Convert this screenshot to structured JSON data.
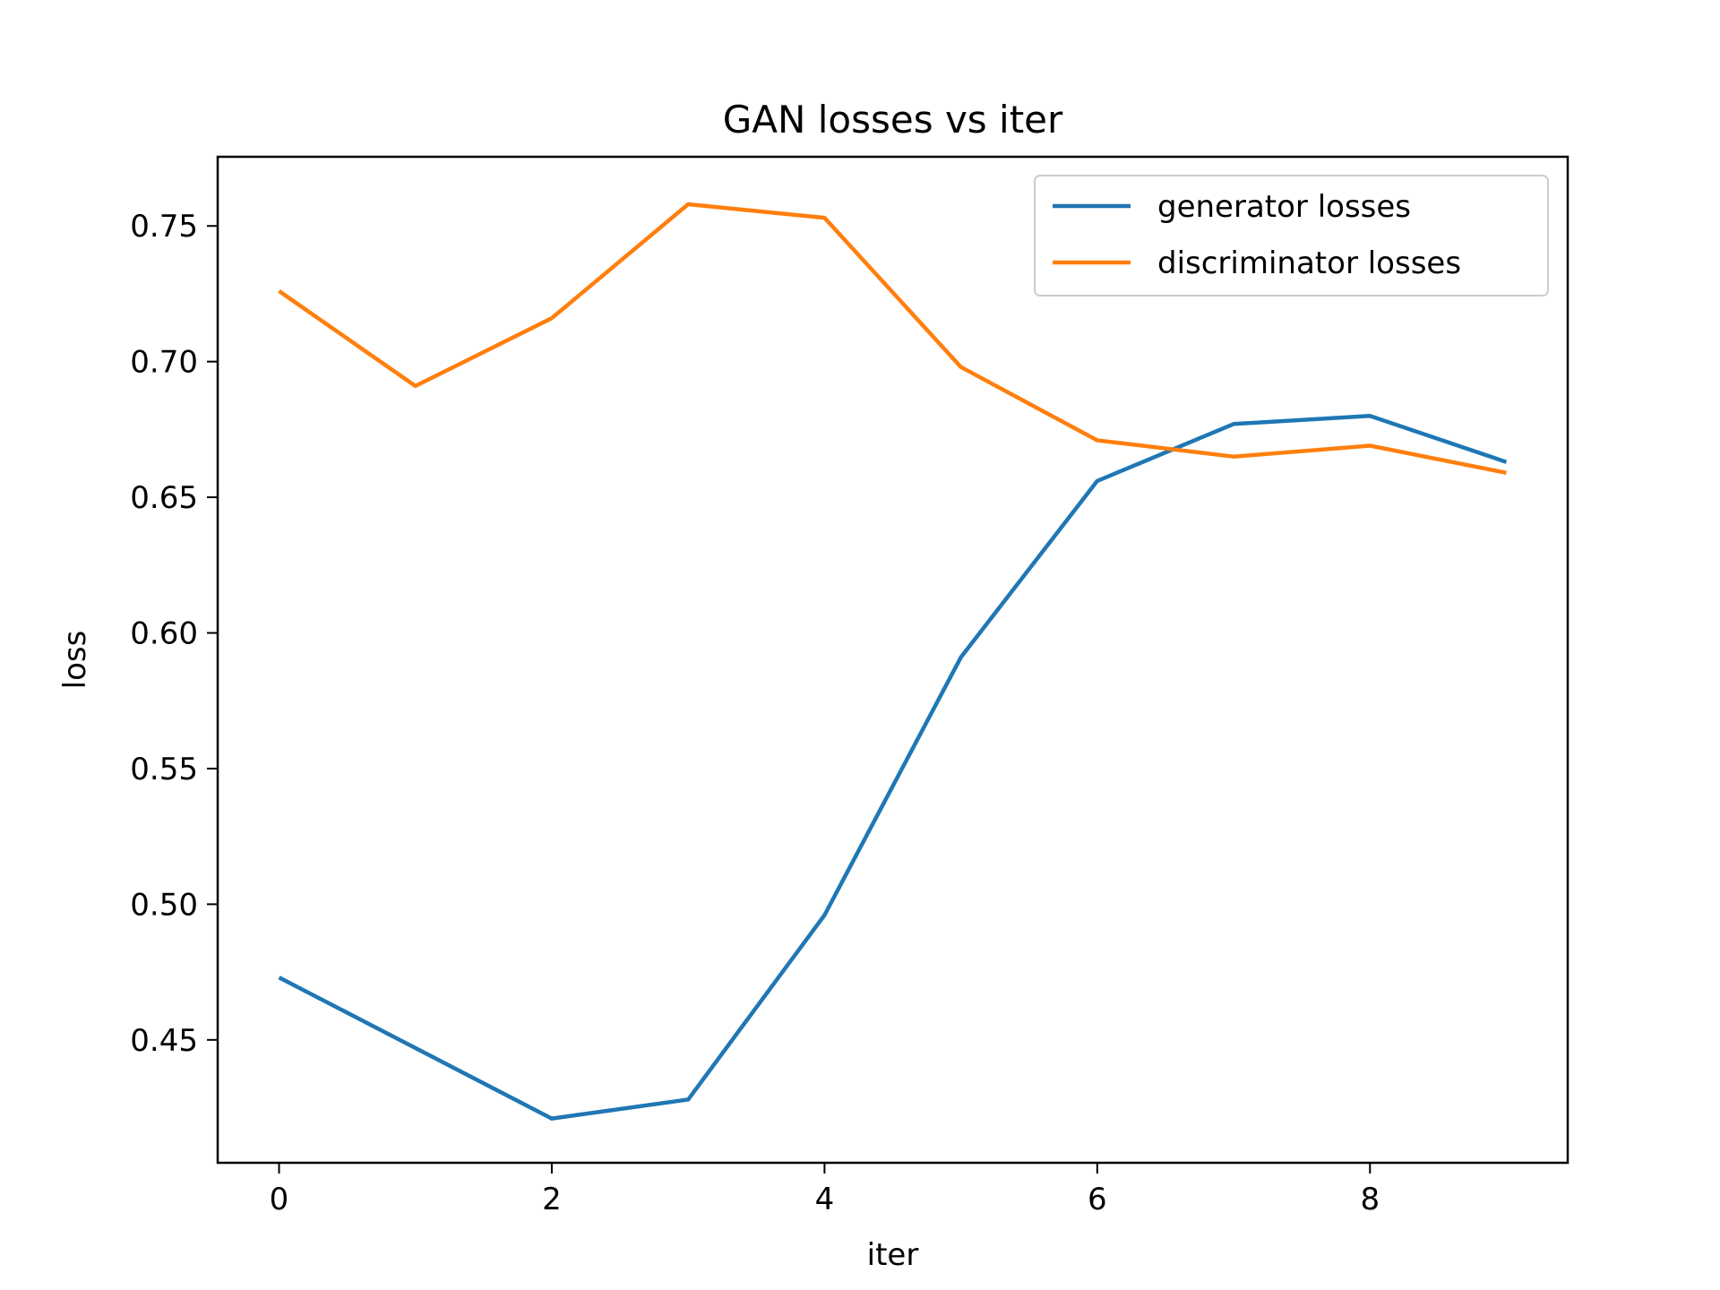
{
  "chart_data": {
    "type": "line",
    "title": "GAN losses vs iter",
    "xlabel": "iter",
    "ylabel": "loss",
    "x": [
      0,
      1,
      2,
      3,
      4,
      5,
      6,
      7,
      8,
      9
    ],
    "series": [
      {
        "name": "generator losses",
        "color": "#1f77b4",
        "values": [
          0.473,
          0.447,
          0.421,
          0.428,
          0.496,
          0.591,
          0.656,
          0.677,
          0.68,
          0.663
        ]
      },
      {
        "name": "discriminator losses",
        "color": "#ff7f0e",
        "values": [
          0.726,
          0.691,
          0.716,
          0.758,
          0.753,
          0.698,
          0.671,
          0.665,
          0.669,
          0.659
        ]
      }
    ],
    "xlim": [
      -0.45,
      9.45
    ],
    "ylim": [
      0.4047,
      0.7755
    ],
    "xticks": [
      0,
      2,
      4,
      6,
      8
    ],
    "xtick_labels": [
      "0",
      "2",
      "4",
      "6",
      "8"
    ],
    "yticks": [
      0.45,
      0.5,
      0.55,
      0.6,
      0.65,
      0.7,
      0.75
    ],
    "ytick_labels": [
      "0.45",
      "0.50",
      "0.55",
      "0.60",
      "0.65",
      "0.70",
      "0.75"
    ],
    "grid": false,
    "legend": "top-right"
  }
}
